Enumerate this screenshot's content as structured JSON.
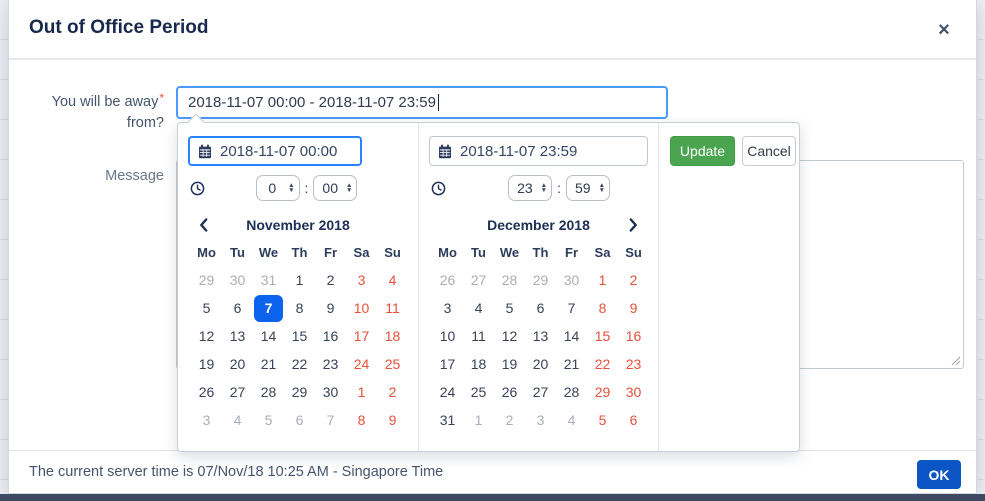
{
  "colors": {
    "selected_day_bg": "#0b63ee",
    "weekend_red": "#e8503a",
    "update_green": "#4ba44f",
    "ok_blue": "#0b55c4",
    "focus_border": "#4c9aff"
  },
  "dialog": {
    "title": "Out of Office Period",
    "close_icon": "×"
  },
  "form": {
    "away_label": "You will be away",
    "away_required": "*",
    "away_label2": "from?",
    "range_value": "2018-11-07 00:00 - 2018-11-07 23:59",
    "message_label": "Message"
  },
  "picker": {
    "start": {
      "value": "2018-11-07 00:00",
      "hour": "0",
      "minute": "00"
    },
    "end": {
      "value": "2018-11-07 23:59",
      "hour": "23",
      "minute": "59"
    },
    "time_separator": ":",
    "update_label": "Update",
    "cancel_label": "Cancel",
    "weekdays": [
      "Mo",
      "Tu",
      "We",
      "Th",
      "Fr",
      "Sa",
      "Su"
    ],
    "months": [
      {
        "title": "November 2018",
        "days": [
          {
            "d": "29",
            "t": "m"
          },
          {
            "d": "30",
            "t": "m"
          },
          {
            "d": "31",
            "t": "m"
          },
          {
            "d": "1",
            "t": "n"
          },
          {
            "d": "2",
            "t": "n"
          },
          {
            "d": "3",
            "t": "w"
          },
          {
            "d": "4",
            "t": "w"
          },
          {
            "d": "5",
            "t": "n"
          },
          {
            "d": "6",
            "t": "n"
          },
          {
            "d": "7",
            "t": "s"
          },
          {
            "d": "8",
            "t": "n"
          },
          {
            "d": "9",
            "t": "n"
          },
          {
            "d": "10",
            "t": "w"
          },
          {
            "d": "11",
            "t": "w"
          },
          {
            "d": "12",
            "t": "n"
          },
          {
            "d": "13",
            "t": "n"
          },
          {
            "d": "14",
            "t": "n"
          },
          {
            "d": "15",
            "t": "n"
          },
          {
            "d": "16",
            "t": "n"
          },
          {
            "d": "17",
            "t": "w"
          },
          {
            "d": "18",
            "t": "w"
          },
          {
            "d": "19",
            "t": "n"
          },
          {
            "d": "20",
            "t": "n"
          },
          {
            "d": "21",
            "t": "n"
          },
          {
            "d": "22",
            "t": "n"
          },
          {
            "d": "23",
            "t": "n"
          },
          {
            "d": "24",
            "t": "w"
          },
          {
            "d": "25",
            "t": "w"
          },
          {
            "d": "26",
            "t": "n"
          },
          {
            "d": "27",
            "t": "n"
          },
          {
            "d": "28",
            "t": "n"
          },
          {
            "d": "29",
            "t": "n"
          },
          {
            "d": "30",
            "t": "n"
          },
          {
            "d": "1",
            "t": "w"
          },
          {
            "d": "2",
            "t": "w"
          },
          {
            "d": "3",
            "t": "m"
          },
          {
            "d": "4",
            "t": "m"
          },
          {
            "d": "5",
            "t": "m"
          },
          {
            "d": "6",
            "t": "m"
          },
          {
            "d": "7",
            "t": "m"
          },
          {
            "d": "8",
            "t": "w"
          },
          {
            "d": "9",
            "t": "w"
          }
        ]
      },
      {
        "title": "December 2018",
        "days": [
          {
            "d": "26",
            "t": "m"
          },
          {
            "d": "27",
            "t": "m"
          },
          {
            "d": "28",
            "t": "m"
          },
          {
            "d": "29",
            "t": "m"
          },
          {
            "d": "30",
            "t": "m"
          },
          {
            "d": "1",
            "t": "w"
          },
          {
            "d": "2",
            "t": "w"
          },
          {
            "d": "3",
            "t": "n"
          },
          {
            "d": "4",
            "t": "n"
          },
          {
            "d": "5",
            "t": "n"
          },
          {
            "d": "6",
            "t": "n"
          },
          {
            "d": "7",
            "t": "n"
          },
          {
            "d": "8",
            "t": "w"
          },
          {
            "d": "9",
            "t": "w"
          },
          {
            "d": "10",
            "t": "n"
          },
          {
            "d": "11",
            "t": "n"
          },
          {
            "d": "12",
            "t": "n"
          },
          {
            "d": "13",
            "t": "n"
          },
          {
            "d": "14",
            "t": "n"
          },
          {
            "d": "15",
            "t": "w"
          },
          {
            "d": "16",
            "t": "w"
          },
          {
            "d": "17",
            "t": "n"
          },
          {
            "d": "18",
            "t": "n"
          },
          {
            "d": "19",
            "t": "n"
          },
          {
            "d": "20",
            "t": "n"
          },
          {
            "d": "21",
            "t": "n"
          },
          {
            "d": "22",
            "t": "w"
          },
          {
            "d": "23",
            "t": "w"
          },
          {
            "d": "24",
            "t": "n"
          },
          {
            "d": "25",
            "t": "n"
          },
          {
            "d": "26",
            "t": "n"
          },
          {
            "d": "27",
            "t": "n"
          },
          {
            "d": "28",
            "t": "n"
          },
          {
            "d": "29",
            "t": "w"
          },
          {
            "d": "30",
            "t": "w"
          },
          {
            "d": "31",
            "t": "n"
          },
          {
            "d": "1",
            "t": "m"
          },
          {
            "d": "2",
            "t": "m"
          },
          {
            "d": "3",
            "t": "m"
          },
          {
            "d": "4",
            "t": "m"
          },
          {
            "d": "5",
            "t": "w"
          },
          {
            "d": "6",
            "t": "w"
          }
        ]
      }
    ]
  },
  "footer": {
    "server_time": "The current server time is 07/Nov/18 10:25 AM - Singapore Time",
    "ok_label": "OK"
  }
}
